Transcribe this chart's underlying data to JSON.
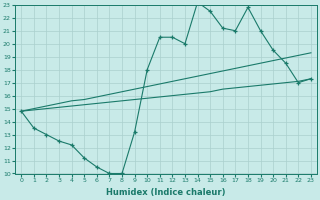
{
  "x": [
    0,
    1,
    2,
    3,
    4,
    5,
    6,
    7,
    8,
    9,
    10,
    11,
    12,
    13,
    14,
    15,
    16,
    17,
    18,
    19,
    20,
    21,
    22,
    23
  ],
  "y_main": [
    14.8,
    13.5,
    13.0,
    12.5,
    12.2,
    11.2,
    10.5,
    10.0,
    10.0,
    13.2,
    18.0,
    20.5,
    20.5,
    20.0,
    23.2,
    22.5,
    21.2,
    21.0,
    22.8,
    21.0,
    19.5,
    18.5,
    17.0,
    17.3
  ],
  "y_upper": [
    14.8,
    15.0,
    15.2,
    15.4,
    15.6,
    15.7,
    15.9,
    16.1,
    16.3,
    16.5,
    16.7,
    16.9,
    17.1,
    17.3,
    17.5,
    17.7,
    17.9,
    18.1,
    18.3,
    18.5,
    18.7,
    18.9,
    19.1,
    19.3
  ],
  "y_lower": [
    14.8,
    14.9,
    15.0,
    15.1,
    15.2,
    15.3,
    15.4,
    15.5,
    15.6,
    15.7,
    15.8,
    15.9,
    16.0,
    16.1,
    16.2,
    16.3,
    16.5,
    16.6,
    16.7,
    16.8,
    16.9,
    17.0,
    17.1,
    17.3
  ],
  "line_color": "#1a7a6a",
  "bg_color": "#c8eae8",
  "grid_color": "#aad0ce",
  "xlabel": "Humidex (Indice chaleur)",
  "xlim": [
    -0.5,
    23.5
  ],
  "ylim": [
    10,
    23
  ],
  "xticks": [
    0,
    1,
    2,
    3,
    4,
    5,
    6,
    7,
    8,
    9,
    10,
    11,
    12,
    13,
    14,
    15,
    16,
    17,
    18,
    19,
    20,
    21,
    22,
    23
  ],
  "yticks": [
    10,
    11,
    12,
    13,
    14,
    15,
    16,
    17,
    18,
    19,
    20,
    21,
    22,
    23
  ],
  "figsize": [
    3.2,
    2.0
  ],
  "dpi": 100
}
